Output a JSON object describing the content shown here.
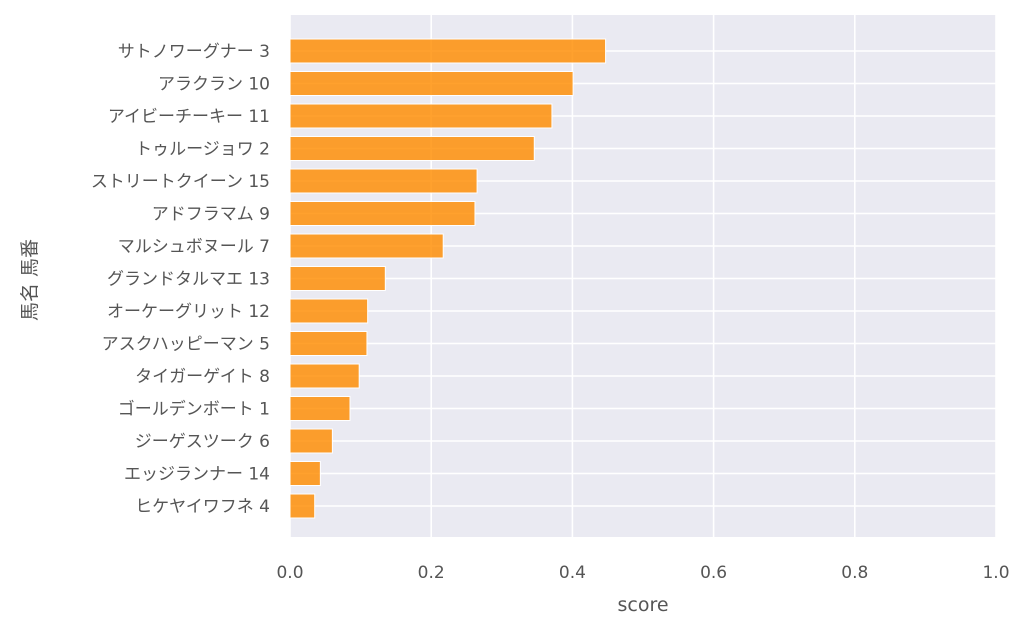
{
  "chart_data": {
    "type": "bar",
    "orientation": "horizontal",
    "categories": [
      "サトノワーグナー 3",
      "アラクラン 10",
      "アイビーチーキー 11",
      "トゥルージョワ 2",
      "ストリートクイーン 15",
      "アドフラマム 9",
      "マルシュボヌール 7",
      "グランドタルマエ 13",
      "オーケーグリット 12",
      "アスクハッピーマン 5",
      "タイガーゲイト 8",
      "ゴールデンボート 1",
      "ジーゲスツーク 6",
      "エッジランナー 14",
      "ヒケヤイワフネ 4"
    ],
    "values": [
      0.447,
      0.401,
      0.371,
      0.346,
      0.265,
      0.262,
      0.217,
      0.135,
      0.11,
      0.109,
      0.098,
      0.085,
      0.06,
      0.043,
      0.035
    ],
    "xlabel": "score",
    "ylabel": "馬名 馬番",
    "xlim": [
      0.0,
      1.0
    ],
    "xticks": [
      "0.0",
      "0.2",
      "0.4",
      "0.6",
      "0.8",
      "1.0"
    ],
    "grid": true,
    "bar_color": "#ff8c00",
    "background_color": "#eaeaf2"
  }
}
